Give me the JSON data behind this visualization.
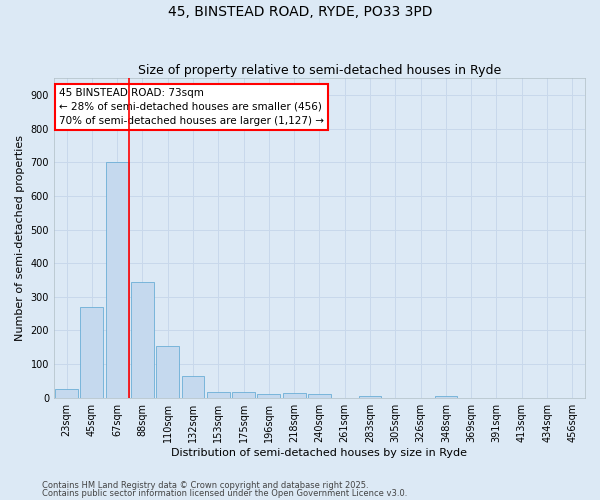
{
  "title": "45, BINSTEAD ROAD, RYDE, PO33 3PD",
  "subtitle": "Size of property relative to semi-detached houses in Ryde",
  "xlabel": "Distribution of semi-detached houses by size in Ryde",
  "ylabel": "Number of semi-detached properties",
  "bin_labels": [
    "23sqm",
    "45sqm",
    "67sqm",
    "88sqm",
    "110sqm",
    "132sqm",
    "153sqm",
    "175sqm",
    "196sqm",
    "218sqm",
    "240sqm",
    "261sqm",
    "283sqm",
    "305sqm",
    "326sqm",
    "348sqm",
    "369sqm",
    "391sqm",
    "413sqm",
    "434sqm",
    "456sqm"
  ],
  "bar_values": [
    25,
    270,
    700,
    345,
    155,
    65,
    18,
    18,
    10,
    15,
    10,
    0,
    5,
    0,
    0,
    5,
    0,
    0,
    0,
    0,
    0
  ],
  "bar_color": "#c5d9ee",
  "bar_edge_color": "#6baed6",
  "grid_color": "#c8d8eb",
  "bg_color": "#dce9f5",
  "vline_x_idx": 2,
  "vline_color": "red",
  "annotation_text": "45 BINSTEAD ROAD: 73sqm\n← 28% of semi-detached houses are smaller (456)\n70% of semi-detached houses are larger (1,127) →",
  "annotation_box_color": "white",
  "annotation_box_edge": "red",
  "ylim": [
    0,
    950
  ],
  "yticks": [
    0,
    100,
    200,
    300,
    400,
    500,
    600,
    700,
    800,
    900
  ],
  "footer1": "Contains HM Land Registry data © Crown copyright and database right 2025.",
  "footer2": "Contains public sector information licensed under the Open Government Licence v3.0.",
  "title_fontsize": 10,
  "subtitle_fontsize": 9,
  "axis_label_fontsize": 8,
  "tick_fontsize": 7,
  "annotation_fontsize": 7.5,
  "footer_fontsize": 6
}
